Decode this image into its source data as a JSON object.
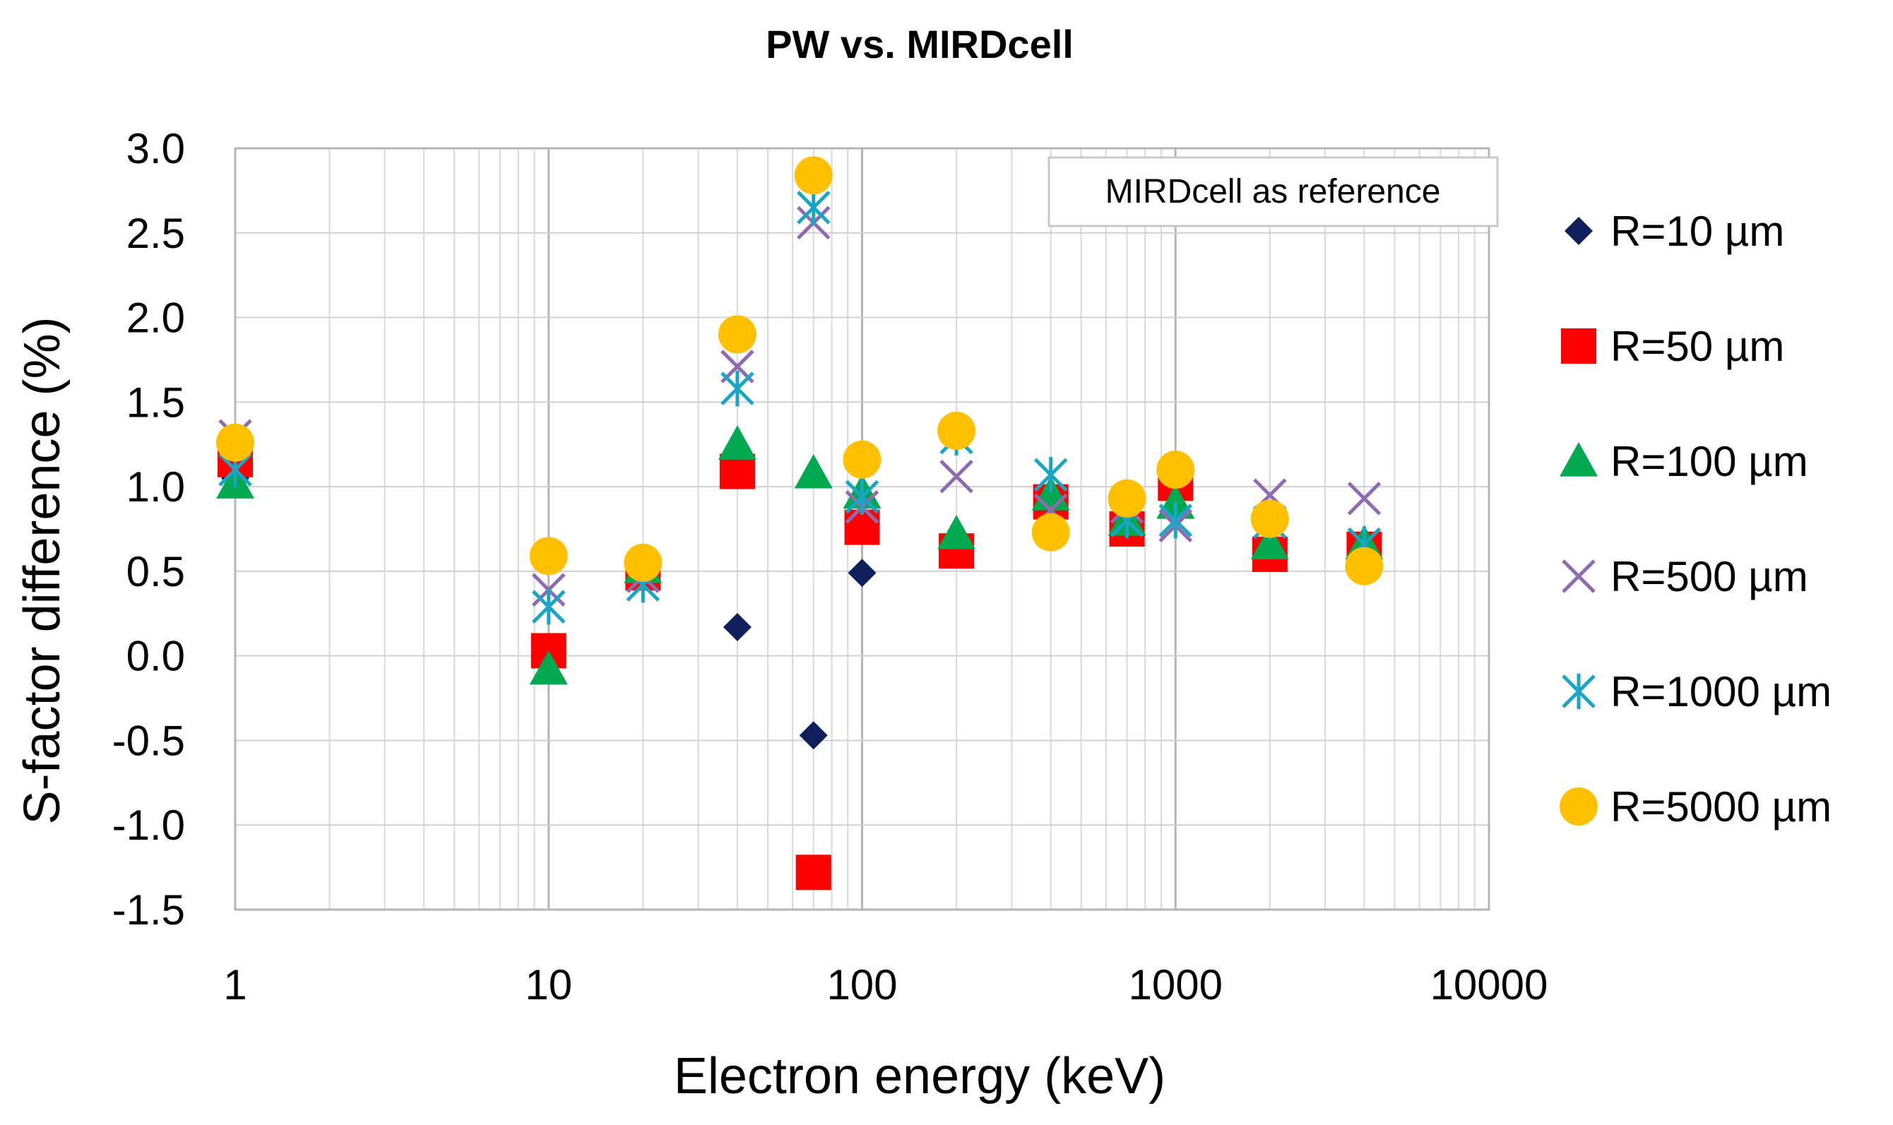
{
  "chart_data": {
    "type": "scatter",
    "title": "PW vs. MIRDcell",
    "xlabel": "Electron energy (keV)",
    "ylabel": "S-factor difference (%)",
    "x_scale": "log",
    "xlim": [
      1,
      10000
    ],
    "ylim": [
      -1.5,
      3.0
    ],
    "x_ticks": [
      "1",
      "10",
      "100",
      "1000",
      "10000"
    ],
    "y_ticks": [
      "3.0",
      "2.5",
      "2.0",
      "1.5",
      "1.0",
      "0.5",
      "0.0",
      "-0.5",
      "-1.0",
      "-1.5"
    ],
    "grid": true,
    "legend_position": "right",
    "annotation": "MIRDcell as reference",
    "series": [
      {
        "name": "R=10 µm",
        "marker": "diamond",
        "color": "#0f1f5c",
        "points": [
          [
            1,
            1.05
          ],
          [
            40,
            0.17
          ],
          [
            70,
            -0.47
          ],
          [
            100,
            0.49
          ]
        ]
      },
      {
        "name": "R=50 µm",
        "marker": "square",
        "color": "#ff0000",
        "points": [
          [
            1,
            1.16
          ],
          [
            10,
            0.03
          ],
          [
            20,
            0.49
          ],
          [
            40,
            1.09
          ],
          [
            70,
            -1.28
          ],
          [
            100,
            0.76
          ],
          [
            200,
            0.62
          ],
          [
            400,
            0.91
          ],
          [
            700,
            0.75
          ],
          [
            1000,
            1.02
          ],
          [
            2000,
            0.6
          ],
          [
            4000,
            0.63
          ]
        ]
      },
      {
        "name": "R=100 µm",
        "marker": "triangle",
        "color": "#00a850",
        "points": [
          [
            1,
            1.02
          ],
          [
            10,
            -0.08
          ],
          [
            20,
            0.52
          ],
          [
            40,
            1.25
          ],
          [
            70,
            1.08
          ],
          [
            100,
            0.96
          ],
          [
            200,
            0.72
          ],
          [
            400,
            0.95
          ],
          [
            700,
            0.8
          ],
          [
            1000,
            0.9
          ],
          [
            2000,
            0.66
          ],
          [
            4000,
            0.66
          ]
        ]
      },
      {
        "name": "R=500 µm",
        "marker": "x",
        "color": "#8e6bb0",
        "points": [
          [
            1,
            1.3
          ],
          [
            10,
            0.39
          ],
          [
            20,
            0.47
          ],
          [
            40,
            1.71
          ],
          [
            70,
            2.56
          ],
          [
            100,
            0.88
          ],
          [
            200,
            1.06
          ],
          [
            400,
            0.86
          ],
          [
            700,
            0.88
          ],
          [
            1000,
            0.77
          ],
          [
            2000,
            0.95
          ],
          [
            4000,
            0.93
          ]
        ]
      },
      {
        "name": "R=1000 µm",
        "marker": "asterisk",
        "color": "#1aa5c4",
        "points": [
          [
            1,
            1.1
          ],
          [
            10,
            0.29
          ],
          [
            20,
            0.42
          ],
          [
            40,
            1.58
          ],
          [
            70,
            2.65
          ],
          [
            100,
            0.94
          ],
          [
            200,
            1.29
          ],
          [
            400,
            1.07
          ],
          [
            700,
            0.8
          ],
          [
            1000,
            0.8
          ],
          [
            2000,
            0.79
          ],
          [
            4000,
            0.66
          ]
        ]
      },
      {
        "name": "R=5000 µm",
        "marker": "circle",
        "color": "#ffc000",
        "points": [
          [
            1,
            1.26
          ],
          [
            10,
            0.59
          ],
          [
            20,
            0.55
          ],
          [
            40,
            1.9
          ],
          [
            70,
            2.84
          ],
          [
            100,
            1.16
          ],
          [
            200,
            1.33
          ],
          [
            400,
            0.73
          ],
          [
            700,
            0.93
          ],
          [
            1000,
            1.1
          ],
          [
            2000,
            0.81
          ],
          [
            4000,
            0.53
          ]
        ]
      }
    ]
  }
}
